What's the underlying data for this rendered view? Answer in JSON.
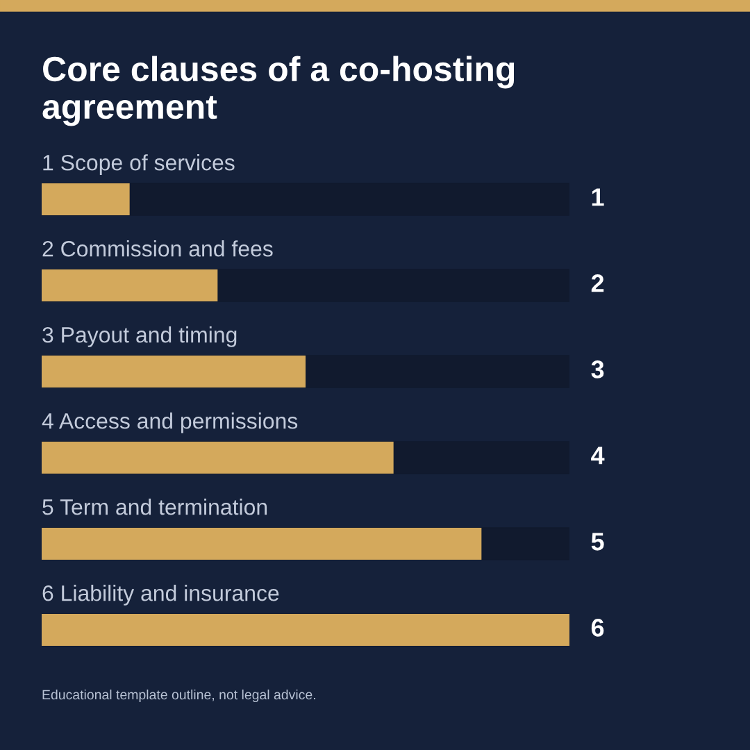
{
  "chart_data": {
    "type": "bar",
    "orientation": "horizontal",
    "title": "Core clauses of a co-hosting agreement",
    "categories": [
      "1 Scope of services",
      "2 Commission and fees",
      "3 Payout and timing",
      "4 Access and permissions",
      "5 Term and termination",
      "6 Liability and insurance"
    ],
    "values": [
      1,
      2,
      3,
      4,
      5,
      6
    ],
    "color": "#d4a95c",
    "xlim": [
      0,
      6
    ],
    "data_labels": true,
    "annotations": [
      "Educational template outline, not legal advice."
    ]
  }
}
